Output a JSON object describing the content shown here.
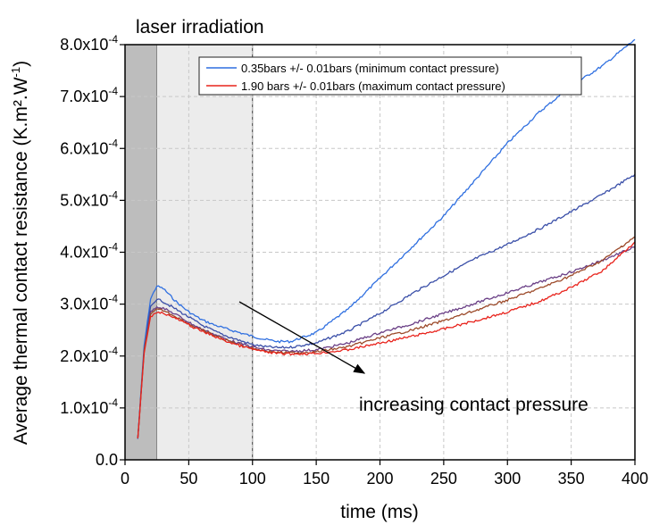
{
  "chart_data": {
    "type": "line",
    "xlabel": "time (ms)",
    "ylabel": "Average thermal contact resistance (K.m².W",
    "ylabel_sup": "-1",
    "ylabel_close": ")",
    "xlim": [
      0,
      400
    ],
    "ylim": [
      0.0,
      0.0008
    ],
    "x_ticks": [
      0,
      50,
      100,
      150,
      200,
      250,
      300,
      350,
      400
    ],
    "x_tick_labels": [
      "0",
      "50",
      "100",
      "150",
      "200",
      "250",
      "300",
      "350",
      "400"
    ],
    "y_ticks": [
      0,
      0.0001,
      0.0002,
      0.0003,
      0.0004,
      0.0005,
      0.0006,
      0.0007,
      0.0008
    ],
    "y_tick_labels": [
      {
        "main": "0.0",
        "sup": ""
      },
      {
        "main": "1.0x10",
        "sup": "-4"
      },
      {
        "main": "2.0x10",
        "sup": "-4"
      },
      {
        "main": "3.0x10",
        "sup": "-4"
      },
      {
        "main": "4.0x10",
        "sup": "-4"
      },
      {
        "main": "5.0x10",
        "sup": "-4"
      },
      {
        "main": "6.0x10",
        "sup": "-4"
      },
      {
        "main": "7.0x10",
        "sup": "-4"
      },
      {
        "main": "8.0x10",
        "sup": "-4"
      }
    ],
    "grid": true,
    "legend_position": "top-right",
    "shaded_regions": [
      {
        "x0": 0,
        "x1": 25,
        "color": "#bdbdbd"
      },
      {
        "x0": 25,
        "x1": 100,
        "color": "#ececec"
      }
    ],
    "annotations": [
      {
        "text": "laser irradiation"
      },
      {
        "text": "increasing contact pressure"
      }
    ],
    "series": [
      {
        "name": "0.35bars +/- 0.01bars (minimum contact pressure)",
        "color": "#2f6fe0",
        "x": [
          10,
          15,
          20,
          25,
          30,
          40,
          50,
          60,
          70,
          80,
          90,
          100,
          110,
          120,
          130,
          150,
          175,
          200,
          225,
          250,
          275,
          300,
          325,
          350,
          375,
          400
        ],
        "y": [
          4e-05,
          0.00022,
          0.00031,
          0.000335,
          0.00033,
          0.000305,
          0.000285,
          0.00027,
          0.00026,
          0.000252,
          0.000245,
          0.000238,
          0.000232,
          0.000228,
          0.000228,
          0.000245,
          0.00029,
          0.00035,
          0.00041,
          0.00047,
          0.00054,
          0.00061,
          0.00067,
          0.00072,
          0.00076,
          0.00081
        ]
      },
      {
        "name": "",
        "color": "#3a4fa8",
        "x": [
          10,
          15,
          20,
          25,
          30,
          40,
          50,
          60,
          70,
          80,
          90,
          100,
          110,
          120,
          130,
          150,
          175,
          200,
          225,
          250,
          275,
          300,
          325,
          350,
          375,
          400
        ],
        "y": [
          4e-05,
          0.00021,
          0.000295,
          0.00031,
          0.000305,
          0.00029,
          0.000275,
          0.00026,
          0.000248,
          0.000238,
          0.00023,
          0.000222,
          0.000218,
          0.000216,
          0.000217,
          0.000225,
          0.000248,
          0.000282,
          0.00032,
          0.000355,
          0.000388,
          0.000415,
          0.000445,
          0.000478,
          0.000512,
          0.00055
        ]
      },
      {
        "name": "",
        "color": "#6a3f86",
        "x": [
          10,
          15,
          20,
          25,
          30,
          40,
          50,
          60,
          70,
          80,
          90,
          100,
          110,
          120,
          130,
          150,
          175,
          200,
          225,
          250,
          275,
          300,
          325,
          350,
          375,
          400
        ],
        "y": [
          4e-05,
          0.00021,
          0.000285,
          0.000295,
          0.000292,
          0.00028,
          0.000265,
          0.000252,
          0.000242,
          0.000232,
          0.000224,
          0.000218,
          0.000212,
          0.00021,
          0.000209,
          0.000212,
          0.000225,
          0.000245,
          0.000262,
          0.000282,
          0.000302,
          0.000322,
          0.000342,
          0.000362,
          0.000385,
          0.00041
        ]
      },
      {
        "name": "",
        "color": "#9c4a2a",
        "x": [
          10,
          15,
          20,
          25,
          30,
          40,
          50,
          60,
          70,
          80,
          90,
          100,
          110,
          120,
          130,
          150,
          175,
          200,
          225,
          250,
          275,
          300,
          325,
          350,
          375,
          400
        ],
        "y": [
          4e-05,
          0.00021,
          0.00028,
          0.00029,
          0.000288,
          0.000276,
          0.000262,
          0.00025,
          0.00024,
          0.00023,
          0.000222,
          0.000215,
          0.00021,
          0.000207,
          0.000206,
          0.000208,
          0.000218,
          0.000235,
          0.00025,
          0.000268,
          0.000288,
          0.000308,
          0.00033,
          0.000355,
          0.000385,
          0.00043
        ]
      },
      {
        "name": "1.90 bars +/- 0.01bars (maximum contact pressure)",
        "color": "#e8231c",
        "x": [
          10,
          15,
          20,
          25,
          30,
          40,
          50,
          60,
          70,
          80,
          90,
          100,
          110,
          120,
          130,
          150,
          175,
          200,
          225,
          250,
          275,
          300,
          325,
          350,
          375,
          400
        ],
        "y": [
          4e-05,
          0.000205,
          0.000275,
          0.000285,
          0.000283,
          0.000272,
          0.00026,
          0.000248,
          0.000238,
          0.000228,
          0.00022,
          0.000213,
          0.000208,
          0.000205,
          0.000204,
          0.000205,
          0.000212,
          0.000225,
          0.000238,
          0.000252,
          0.000268,
          0.000285,
          0.000305,
          0.000332,
          0.000365,
          0.00042
        ]
      }
    ]
  }
}
